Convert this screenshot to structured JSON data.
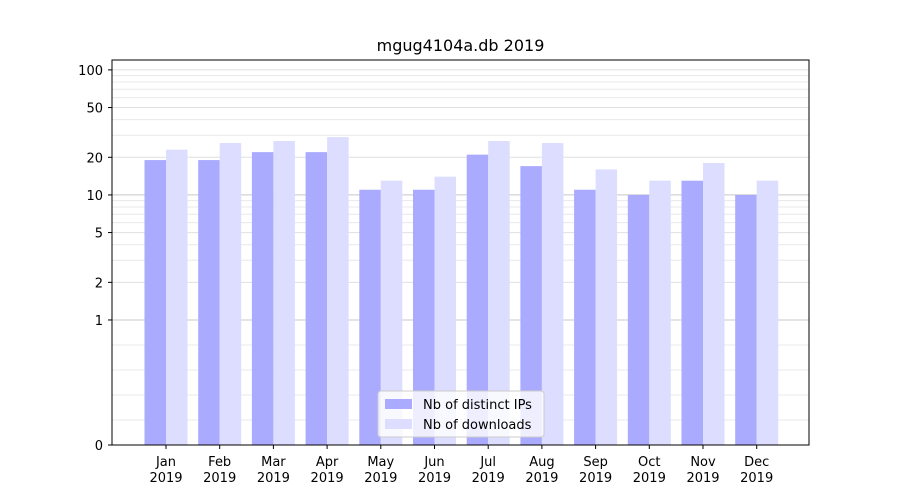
{
  "chart_data": {
    "type": "bar",
    "title": "mgug4104a.db 2019",
    "xlabel": "",
    "ylabel": "",
    "y_scale": "symlog",
    "ylim": [
      0,
      120
    ],
    "y_ticks": [
      0,
      1,
      2,
      5,
      10,
      20,
      50,
      100
    ],
    "y_tick_labels": [
      "0",
      "1",
      "2",
      "5",
      "10",
      "20",
      "50",
      "100"
    ],
    "categories": [
      "Jan\n2019",
      "Feb\n2019",
      "Mar\n2019",
      "Apr\n2019",
      "May\n2019",
      "Jun\n2019",
      "Jul\n2019",
      "Aug\n2019",
      "Sep\n2019",
      "Oct\n2019",
      "Nov\n2019",
      "Dec\n2019"
    ],
    "series": [
      {
        "name": "Nb of distinct IPs",
        "color": "#aaaaff",
        "values": [
          19,
          19,
          22,
          22,
          11,
          11,
          21,
          17,
          11,
          10,
          13,
          10
        ]
      },
      {
        "name": "Nb of downloads",
        "color": "#ddddff",
        "values": [
          23,
          26,
          27,
          29,
          13,
          14,
          27,
          26,
          16,
          13,
          18,
          13
        ]
      }
    ],
    "grid": true,
    "legend_position": "lower center"
  }
}
